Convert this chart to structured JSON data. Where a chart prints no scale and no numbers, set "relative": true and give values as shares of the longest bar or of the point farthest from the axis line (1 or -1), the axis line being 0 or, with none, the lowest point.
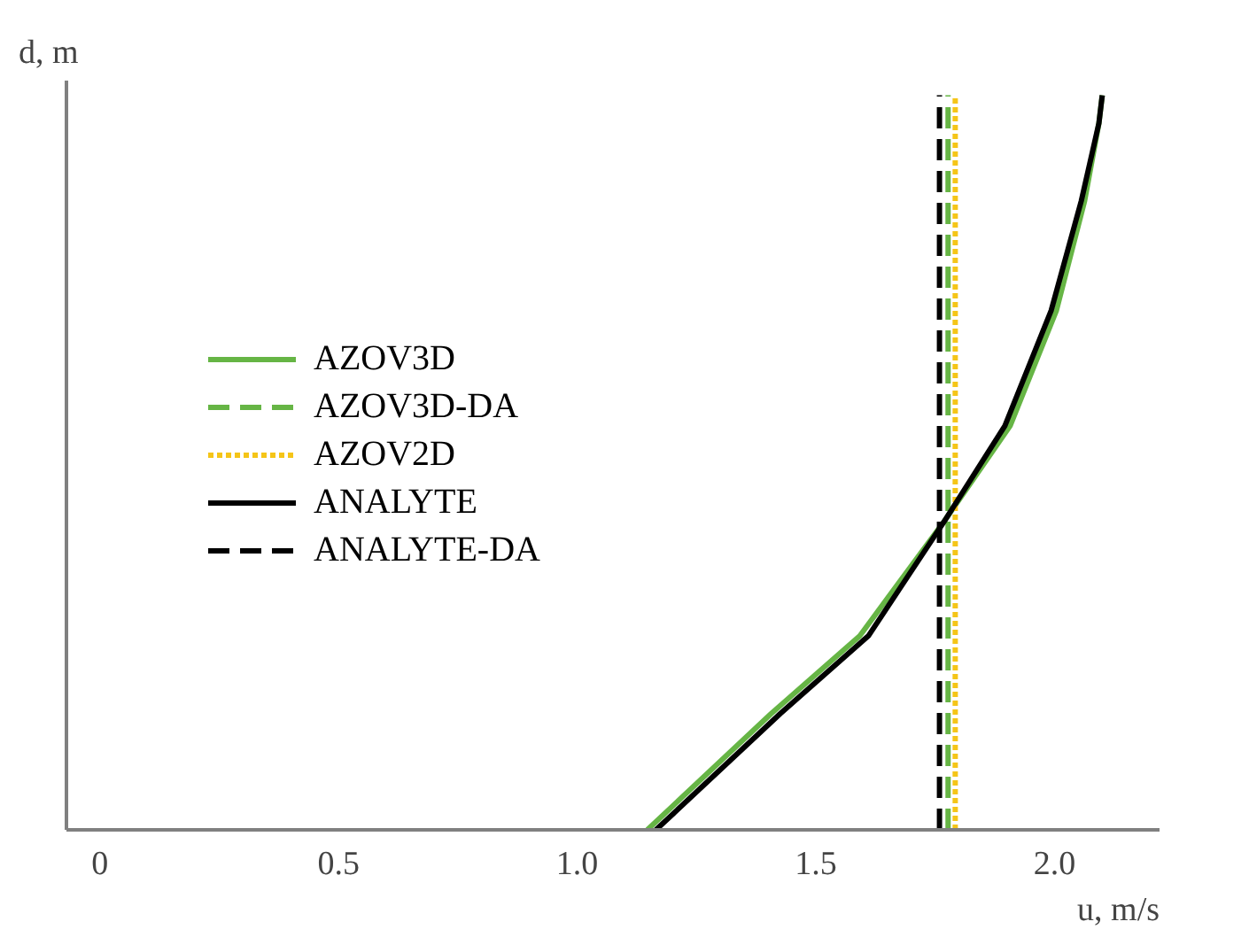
{
  "chart_data": {
    "type": "line",
    "xlabel": "u, m/s",
    "ylabel": "d, m",
    "relative": true,
    "xlim": [
      -0.07,
      2.22
    ],
    "xticks": [
      0,
      0.5,
      {
        "value": 1.0,
        "label": "1.0"
      },
      1.5,
      {
        "value": 2.0,
        "label": "2.0"
      }
    ],
    "grid": false,
    "legend": "left",
    "series": [
      {
        "name": "AZOV3D",
        "color": "#66b545",
        "line_style": "solid",
        "x": [
          1.147,
          1.406,
          1.592,
          1.77,
          1.907,
          2.004,
          2.063,
          2.093,
          2.1
        ],
        "values": [
          0,
          0.158,
          0.264,
          0.421,
          0.55,
          0.707,
          0.856,
          0.962,
          1.0
        ]
      },
      {
        "name": "AZOV3D-DA",
        "color": "#66b545",
        "line_style": "dashed",
        "x": [
          1.777,
          1.777
        ],
        "values": [
          0,
          1.0
        ]
      },
      {
        "name": "AZOV2D",
        "color": "#f5c518",
        "line_style": "dotted",
        "x": [
          1.792,
          1.792
        ],
        "values": [
          0,
          1.0
        ]
      },
      {
        "name": "ANALYTE",
        "color": "#000000",
        "line_style": "solid",
        "x": [
          1.165,
          1.425,
          1.61,
          1.77,
          1.896,
          1.993,
          2.056,
          2.093,
          2.1
        ],
        "values": [
          0,
          0.158,
          0.264,
          0.421,
          0.55,
          0.707,
          0.856,
          0.962,
          1.0
        ]
      },
      {
        "name": "ANALYTE-DA",
        "color": "#000000",
        "line_style": "dashed",
        "x": [
          1.759,
          1.759
        ],
        "values": [
          0,
          1.0
        ]
      }
    ]
  }
}
